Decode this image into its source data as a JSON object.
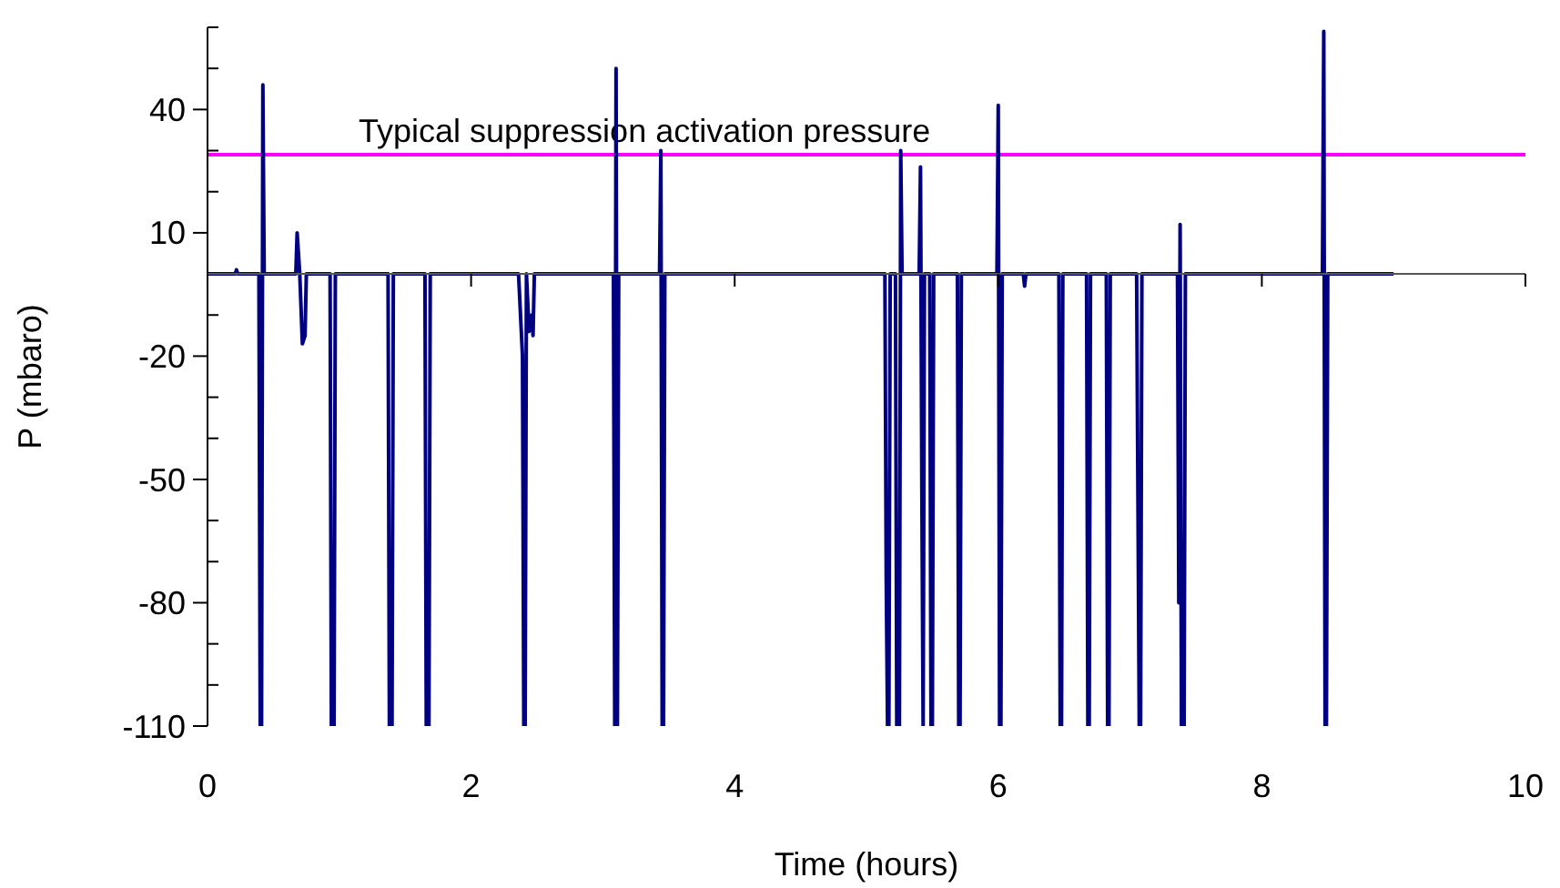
{
  "chart_data": {
    "type": "line",
    "xlabel": "Time (hours)",
    "ylabel": "P (mbaro)",
    "xlim": [
      0,
      10
    ],
    "xticks": [
      0,
      2,
      4,
      6,
      8,
      10
    ],
    "ylim": [
      -110,
      60
    ],
    "yticks": [
      -110,
      {
        "value": -100,
        "label": null
      },
      {
        "value": -90,
        "label": null
      },
      -80,
      {
        "value": -70,
        "label": null
      },
      {
        "value": -60,
        "label": null
      },
      -50,
      {
        "value": -40,
        "label": null
      },
      {
        "value": -30,
        "label": null
      },
      -20,
      {
        "value": -10,
        "label": null
      },
      10,
      {
        "value": 20,
        "label": null
      },
      {
        "value": 30,
        "label": null
      },
      40,
      {
        "value": 50,
        "label": null
      },
      {
        "value": 60,
        "label": null
      }
    ],
    "grid": false,
    "legend": false,
    "marker": "none",
    "line_style": "solid",
    "ref_lines": [
      {
        "axis": "y",
        "value": 29,
        "label": "Typical suppression activation pressure",
        "color": "#ff00ff"
      }
    ],
    "series": [
      {
        "color": "#000080",
        "x": [
          0,
          0.21,
          0.22,
          0.23,
          0.39,
          0.4,
          0.41,
          0.42,
          0.43,
          0.67,
          0.68,
          0.7,
          0.72,
          0.74,
          0.75,
          0.93,
          0.94,
          0.96,
          0.97,
          1.37,
          1.38,
          1.4,
          1.41,
          1.65,
          1.66,
          1.68,
          1.69,
          2.36,
          2.39,
          2.4,
          2.41,
          2.42,
          2.44,
          2.46,
          2.47,
          2.48,
          3.08,
          3.09,
          3.1,
          3.11,
          3.12,
          3.43,
          3.44,
          3.45,
          3.46,
          3.47,
          5.14,
          5.15,
          5.16,
          5.17,
          5.18,
          5.22,
          5.23,
          5.25,
          5.26,
          5.27,
          5.4,
          5.41,
          5.42,
          5.43,
          5.44,
          5.48,
          5.49,
          5.5,
          5.51,
          5.69,
          5.7,
          5.71,
          5.72,
          5.99,
          6.0,
          6.01,
          6.02,
          6.03,
          6.19,
          6.2,
          6.21,
          6.46,
          6.47,
          6.48,
          6.49,
          6.67,
          6.68,
          6.69,
          6.7,
          6.82,
          6.83,
          6.84,
          6.85,
          7.05,
          7.07,
          7.08,
          7.09,
          7.36,
          7.37,
          7.38,
          7.39,
          7.41,
          7.42,
          8.46,
          8.47,
          8.48,
          8.49,
          8.5,
          9.0
        ],
        "values": [
          0,
          0,
          1,
          0,
          0,
          -110,
          -110,
          46,
          0,
          0,
          10,
          0,
          -17,
          -15,
          0,
          0,
          -110,
          -110,
          0,
          0,
          -110,
          -110,
          0,
          0,
          -110,
          -110,
          0,
          0,
          -20,
          -110,
          -110,
          0,
          -14,
          -10,
          -15,
          0,
          0,
          -110,
          50,
          -110,
          0,
          0,
          30,
          -110,
          -110,
          0,
          0,
          -74,
          -110,
          -110,
          0,
          0,
          -110,
          -110,
          30,
          0,
          0,
          26,
          -50,
          -110,
          0,
          0,
          -110,
          -110,
          0,
          0,
          -110,
          -110,
          0,
          0,
          41,
          -110,
          -110,
          0,
          0,
          -3,
          0,
          0,
          -110,
          -110,
          0,
          0,
          -110,
          -110,
          0,
          0,
          -110,
          -110,
          0,
          0,
          -110,
          -110,
          0,
          0,
          -80,
          12,
          -110,
          -110,
          0,
          0,
          59,
          -110,
          -110,
          0,
          0
        ]
      }
    ]
  }
}
